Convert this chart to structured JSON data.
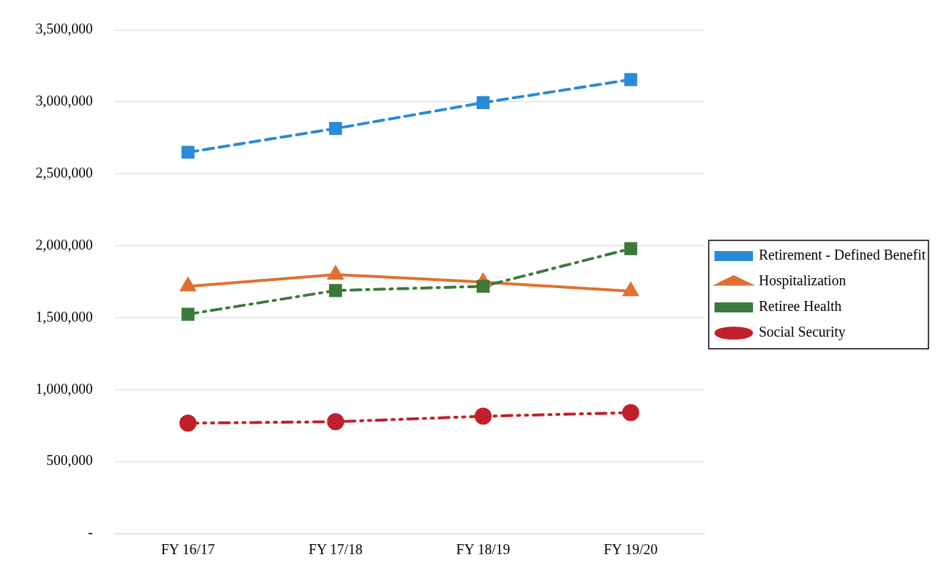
{
  "chart_data": {
    "type": "line",
    "categories": [
      "FY 16/17",
      "FY 17/18",
      "FY 18/19",
      "FY 19/20"
    ],
    "series": [
      {
        "name": "Retirement - Defined Benefit",
        "color": "#2a8ad8",
        "values": [
          2650000,
          2815000,
          2995000,
          3155000
        ],
        "marker": "square",
        "line_style": "dashed"
      },
      {
        "name": "Hospitalization",
        "color": "#e07030",
        "values": [
          1718000,
          1800000,
          1747000,
          1684000
        ],
        "marker": "triangle",
        "line_style": "solid"
      },
      {
        "name": "Retiree Health",
        "color": "#3a7a3a",
        "values": [
          1524000,
          1689000,
          1718000,
          1980000
        ],
        "marker": "square",
        "line_style": "dashdot"
      },
      {
        "name": "Social Security",
        "color": "#c0202a",
        "values": [
          767000,
          777000,
          815000,
          840000
        ],
        "marker": "circle",
        "line_style": "dashdotdot"
      }
    ],
    "ylim": [
      0,
      3500000
    ],
    "yticks": [
      {
        "value": 0,
        "label": "-"
      },
      {
        "value": 500000,
        "label": "500,000"
      },
      {
        "value": 1000000,
        "label": "1,000,000"
      },
      {
        "value": 1500000,
        "label": "1,500,000"
      },
      {
        "value": 2000000,
        "label": "2,000,000"
      },
      {
        "value": 2500000,
        "label": "2,500,000"
      },
      {
        "value": 3000000,
        "label": "3,000,000"
      },
      {
        "value": 3500000,
        "label": "3,500,000"
      }
    ],
    "grid": "y",
    "legend": "right"
  }
}
